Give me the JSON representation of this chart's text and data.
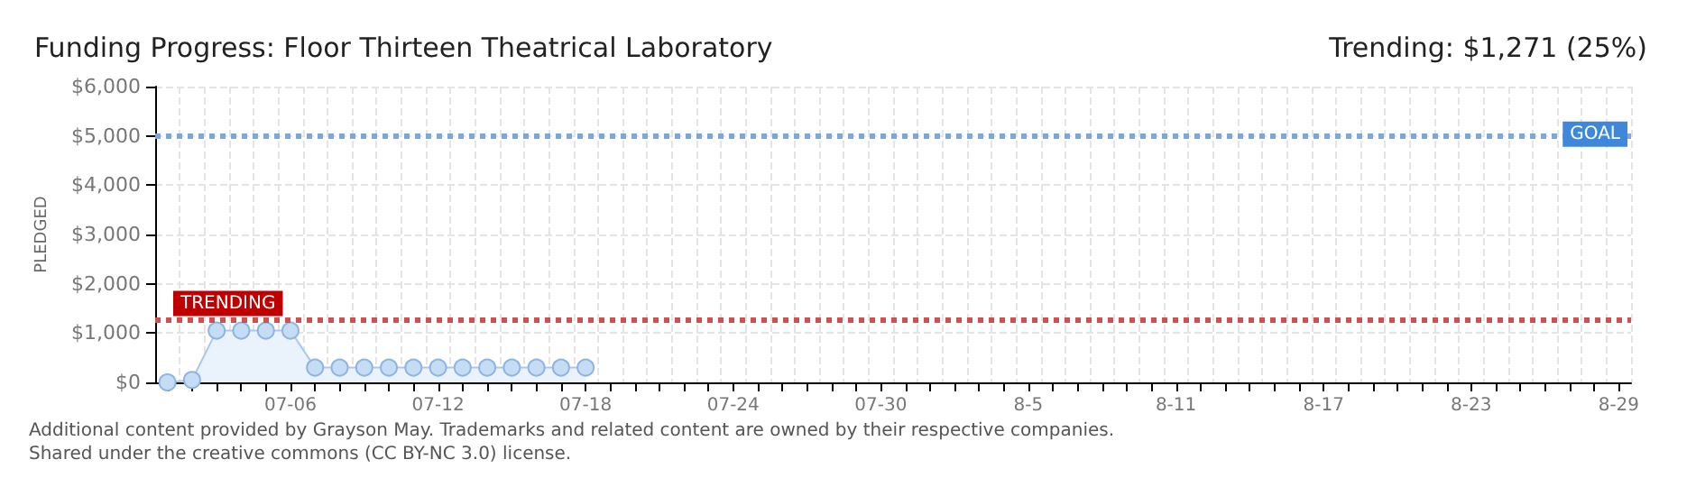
{
  "chart_data": {
    "type": "area",
    "title": "Funding Progress: Floor Thirteen Theatrical Laboratory",
    "subtitle": "Trending: $1,271 (25%)",
    "ylabel": "PLEDGED",
    "categories": [
      null,
      null,
      null,
      null,
      null,
      "07-06",
      null,
      null,
      null,
      null,
      null,
      "07-12",
      null,
      null,
      null,
      null,
      null,
      "07-18",
      null,
      null,
      null,
      null,
      null,
      "07-24",
      null,
      null,
      null,
      null,
      null,
      "07-30",
      null,
      null,
      null,
      null,
      null,
      "8-5",
      null,
      null,
      null,
      null,
      null,
      "8-11",
      null,
      null,
      null,
      null,
      null,
      "8-17",
      null,
      null,
      null,
      null,
      null,
      "8-23",
      null,
      null,
      null,
      null,
      null,
      "8-29"
    ],
    "series": [
      {
        "color": "#c5dcf5",
        "values": [
          0,
          50,
          1050,
          1050,
          1050,
          1050,
          300,
          300,
          300,
          300,
          300,
          300,
          300,
          300,
          300,
          300,
          300,
          300,
          null,
          null,
          null,
          null,
          null,
          null,
          null,
          null,
          null,
          null,
          null,
          null,
          null,
          null,
          null,
          null,
          null,
          null,
          null,
          null,
          null,
          null,
          null,
          null,
          null,
          null,
          null,
          null,
          null,
          null,
          null,
          null,
          null,
          null,
          null,
          null,
          null,
          null,
          null,
          null,
          null,
          null
        ]
      }
    ],
    "ylim": [
      0,
      6000
    ],
    "yticks": [
      {
        "value": 0,
        "label": "$0"
      },
      {
        "value": 1000,
        "label": "$1,000"
      },
      {
        "value": 2000,
        "label": "$2,000"
      },
      {
        "value": 3000,
        "label": "$3,000"
      },
      {
        "value": 4000,
        "label": "$4,000"
      },
      {
        "value": 5000,
        "label": "$5,000"
      },
      {
        "value": 6000,
        "label": "$6,000"
      }
    ],
    "grid": true,
    "marker": "circle",
    "ref_lines": [
      {
        "axis": "y",
        "value": 5000,
        "label": "GOAL",
        "color": "#7ba7dc",
        "line_style": "dotted"
      },
      {
        "axis": "y",
        "value": 1271,
        "label": "TRENDING",
        "color": "#d05050",
        "line_style": "dotted"
      }
    ],
    "annotations": [
      "Additional content provided by Grayson May. Trademarks and related content are owned by their respective companies.",
      "Shared under the creative commons (CC BY-NC 3.0) license."
    ]
  }
}
